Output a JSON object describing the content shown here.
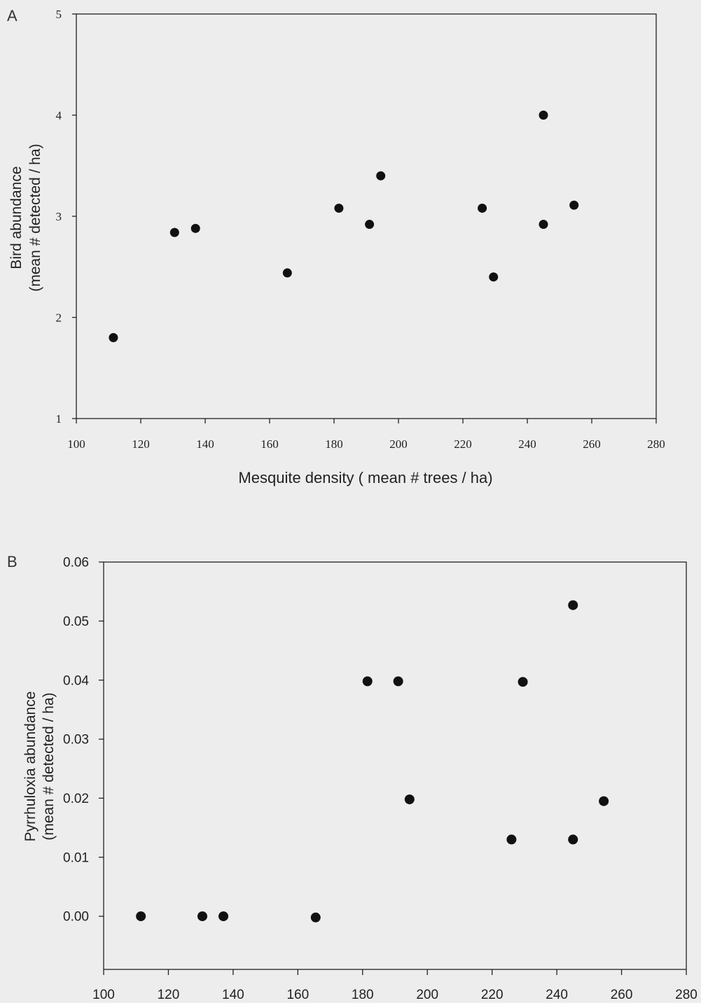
{
  "chart_data": [
    {
      "type": "scatter",
      "panel_label": "A",
      "xlabel": "Mesquite density ( mean # trees / ha)",
      "ylabel_line1": "Bird abundance",
      "ylabel_line2": "(mean # detected / ha)",
      "xlim": [
        100,
        280
      ],
      "ylim": [
        1,
        5
      ],
      "xticks": [
        "100",
        "120",
        "140",
        "160",
        "180",
        "200",
        "220",
        "240",
        "260",
        "280"
      ],
      "yticks": [
        "1",
        "2",
        "3",
        "4",
        "5"
      ],
      "points": [
        {
          "x": 111.5,
          "y": 1.8
        },
        {
          "x": 130.5,
          "y": 2.84
        },
        {
          "x": 137.0,
          "y": 2.88
        },
        {
          "x": 165.5,
          "y": 2.44
        },
        {
          "x": 181.5,
          "y": 3.08
        },
        {
          "x": 191.0,
          "y": 2.92
        },
        {
          "x": 194.5,
          "y": 3.4
        },
        {
          "x": 226.0,
          "y": 3.08
        },
        {
          "x": 229.5,
          "y": 2.4
        },
        {
          "x": 245.0,
          "y": 4.0
        },
        {
          "x": 245.0,
          "y": 2.92
        },
        {
          "x": 254.5,
          "y": 3.11
        }
      ]
    },
    {
      "type": "scatter",
      "panel_label": "B",
      "xlabel": "",
      "ylabel_line1": "Pyrrhuloxia abundance",
      "ylabel_line2": "(mean # detected / ha)",
      "xlim": [
        100,
        280
      ],
      "ylim": [
        -0.009,
        0.06
      ],
      "xticks": [
        "100",
        "120",
        "140",
        "160",
        "180",
        "200",
        "220",
        "240",
        "260",
        "280"
      ],
      "yticks": [
        "0.00",
        "0.01",
        "0.02",
        "0.03",
        "0.04",
        "0.05",
        "0.06"
      ],
      "points": [
        {
          "x": 111.5,
          "y": 0.0
        },
        {
          "x": 130.5,
          "y": 0.0
        },
        {
          "x": 137.0,
          "y": 0.0
        },
        {
          "x": 165.5,
          "y": -0.0002
        },
        {
          "x": 181.5,
          "y": 0.0398
        },
        {
          "x": 191.0,
          "y": 0.0398
        },
        {
          "x": 194.5,
          "y": 0.0198
        },
        {
          "x": 226.0,
          "y": 0.013
        },
        {
          "x": 229.5,
          "y": 0.0397
        },
        {
          "x": 245.0,
          "y": 0.0527
        },
        {
          "x": 245.0,
          "y": 0.013
        },
        {
          "x": 254.5,
          "y": 0.0195
        }
      ]
    }
  ]
}
